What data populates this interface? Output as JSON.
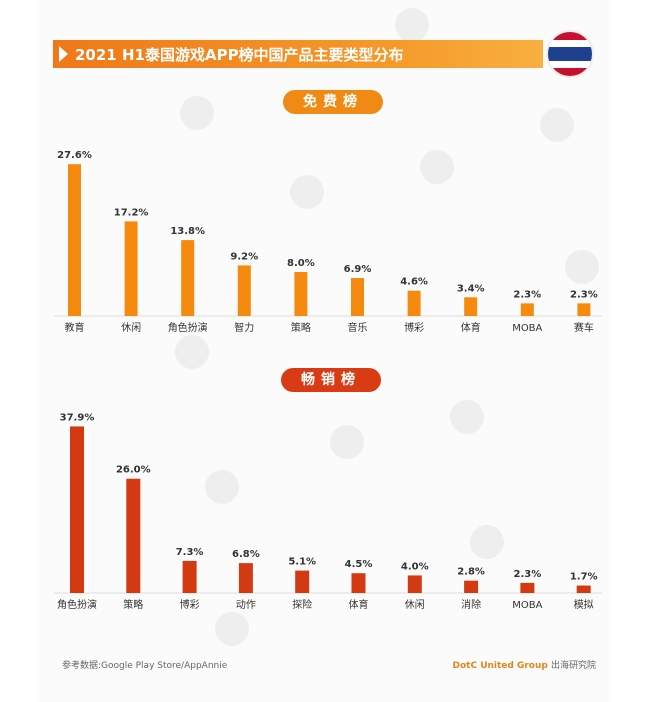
{
  "title": "2021 H1泰国游戏APP榜中国产品主要类型分布",
  "flag_colors": [
    "#c8102e",
    "#ffffff",
    "#1f3f8f",
    "#ffffff",
    "#c8102e"
  ],
  "sections": {
    "free": {
      "label": "免费榜",
      "color": "#f58a0e"
    },
    "grossing": {
      "label": "畅销榜",
      "color": "#d43a12"
    }
  },
  "chart_data": [
    {
      "type": "bar",
      "title": "免费榜",
      "unit": "%",
      "categories": [
        "教育",
        "休闲",
        "角色扮演",
        "智力",
        "策略",
        "音乐",
        "博彩",
        "体育",
        "MOBA",
        "赛车"
      ],
      "values": [
        27.6,
        17.2,
        13.8,
        9.2,
        8.0,
        6.9,
        4.6,
        3.4,
        2.3,
        2.3
      ],
      "labels": [
        "27.6%",
        "17.2%",
        "13.8%",
        "9.2%",
        "8.0%",
        "6.9%",
        "4.6%",
        "3.4%",
        "2.3%",
        "2.3%"
      ],
      "ylim": [
        0,
        28
      ]
    },
    {
      "type": "bar",
      "title": "畅销榜",
      "unit": "%",
      "categories": [
        "角色扮演",
        "策略",
        "博彩",
        "动作",
        "探险",
        "体育",
        "休闲",
        "消除",
        "MOBA",
        "模拟"
      ],
      "values": [
        37.9,
        26.0,
        7.3,
        6.8,
        5.1,
        4.5,
        4.0,
        2.8,
        2.3,
        1.7
      ],
      "labels": [
        "37.9%",
        "26.0%",
        "7.3%",
        "6.8%",
        "5.1%",
        "4.5%",
        "4.0%",
        "2.8%",
        "2.3%",
        "1.7%"
      ],
      "ylim": [
        0,
        38
      ]
    }
  ],
  "footer": {
    "source": "参考数据:Google Play Store/AppAnnie",
    "brand": "DotC United Group",
    "brand_suffix": "出海研究院"
  }
}
